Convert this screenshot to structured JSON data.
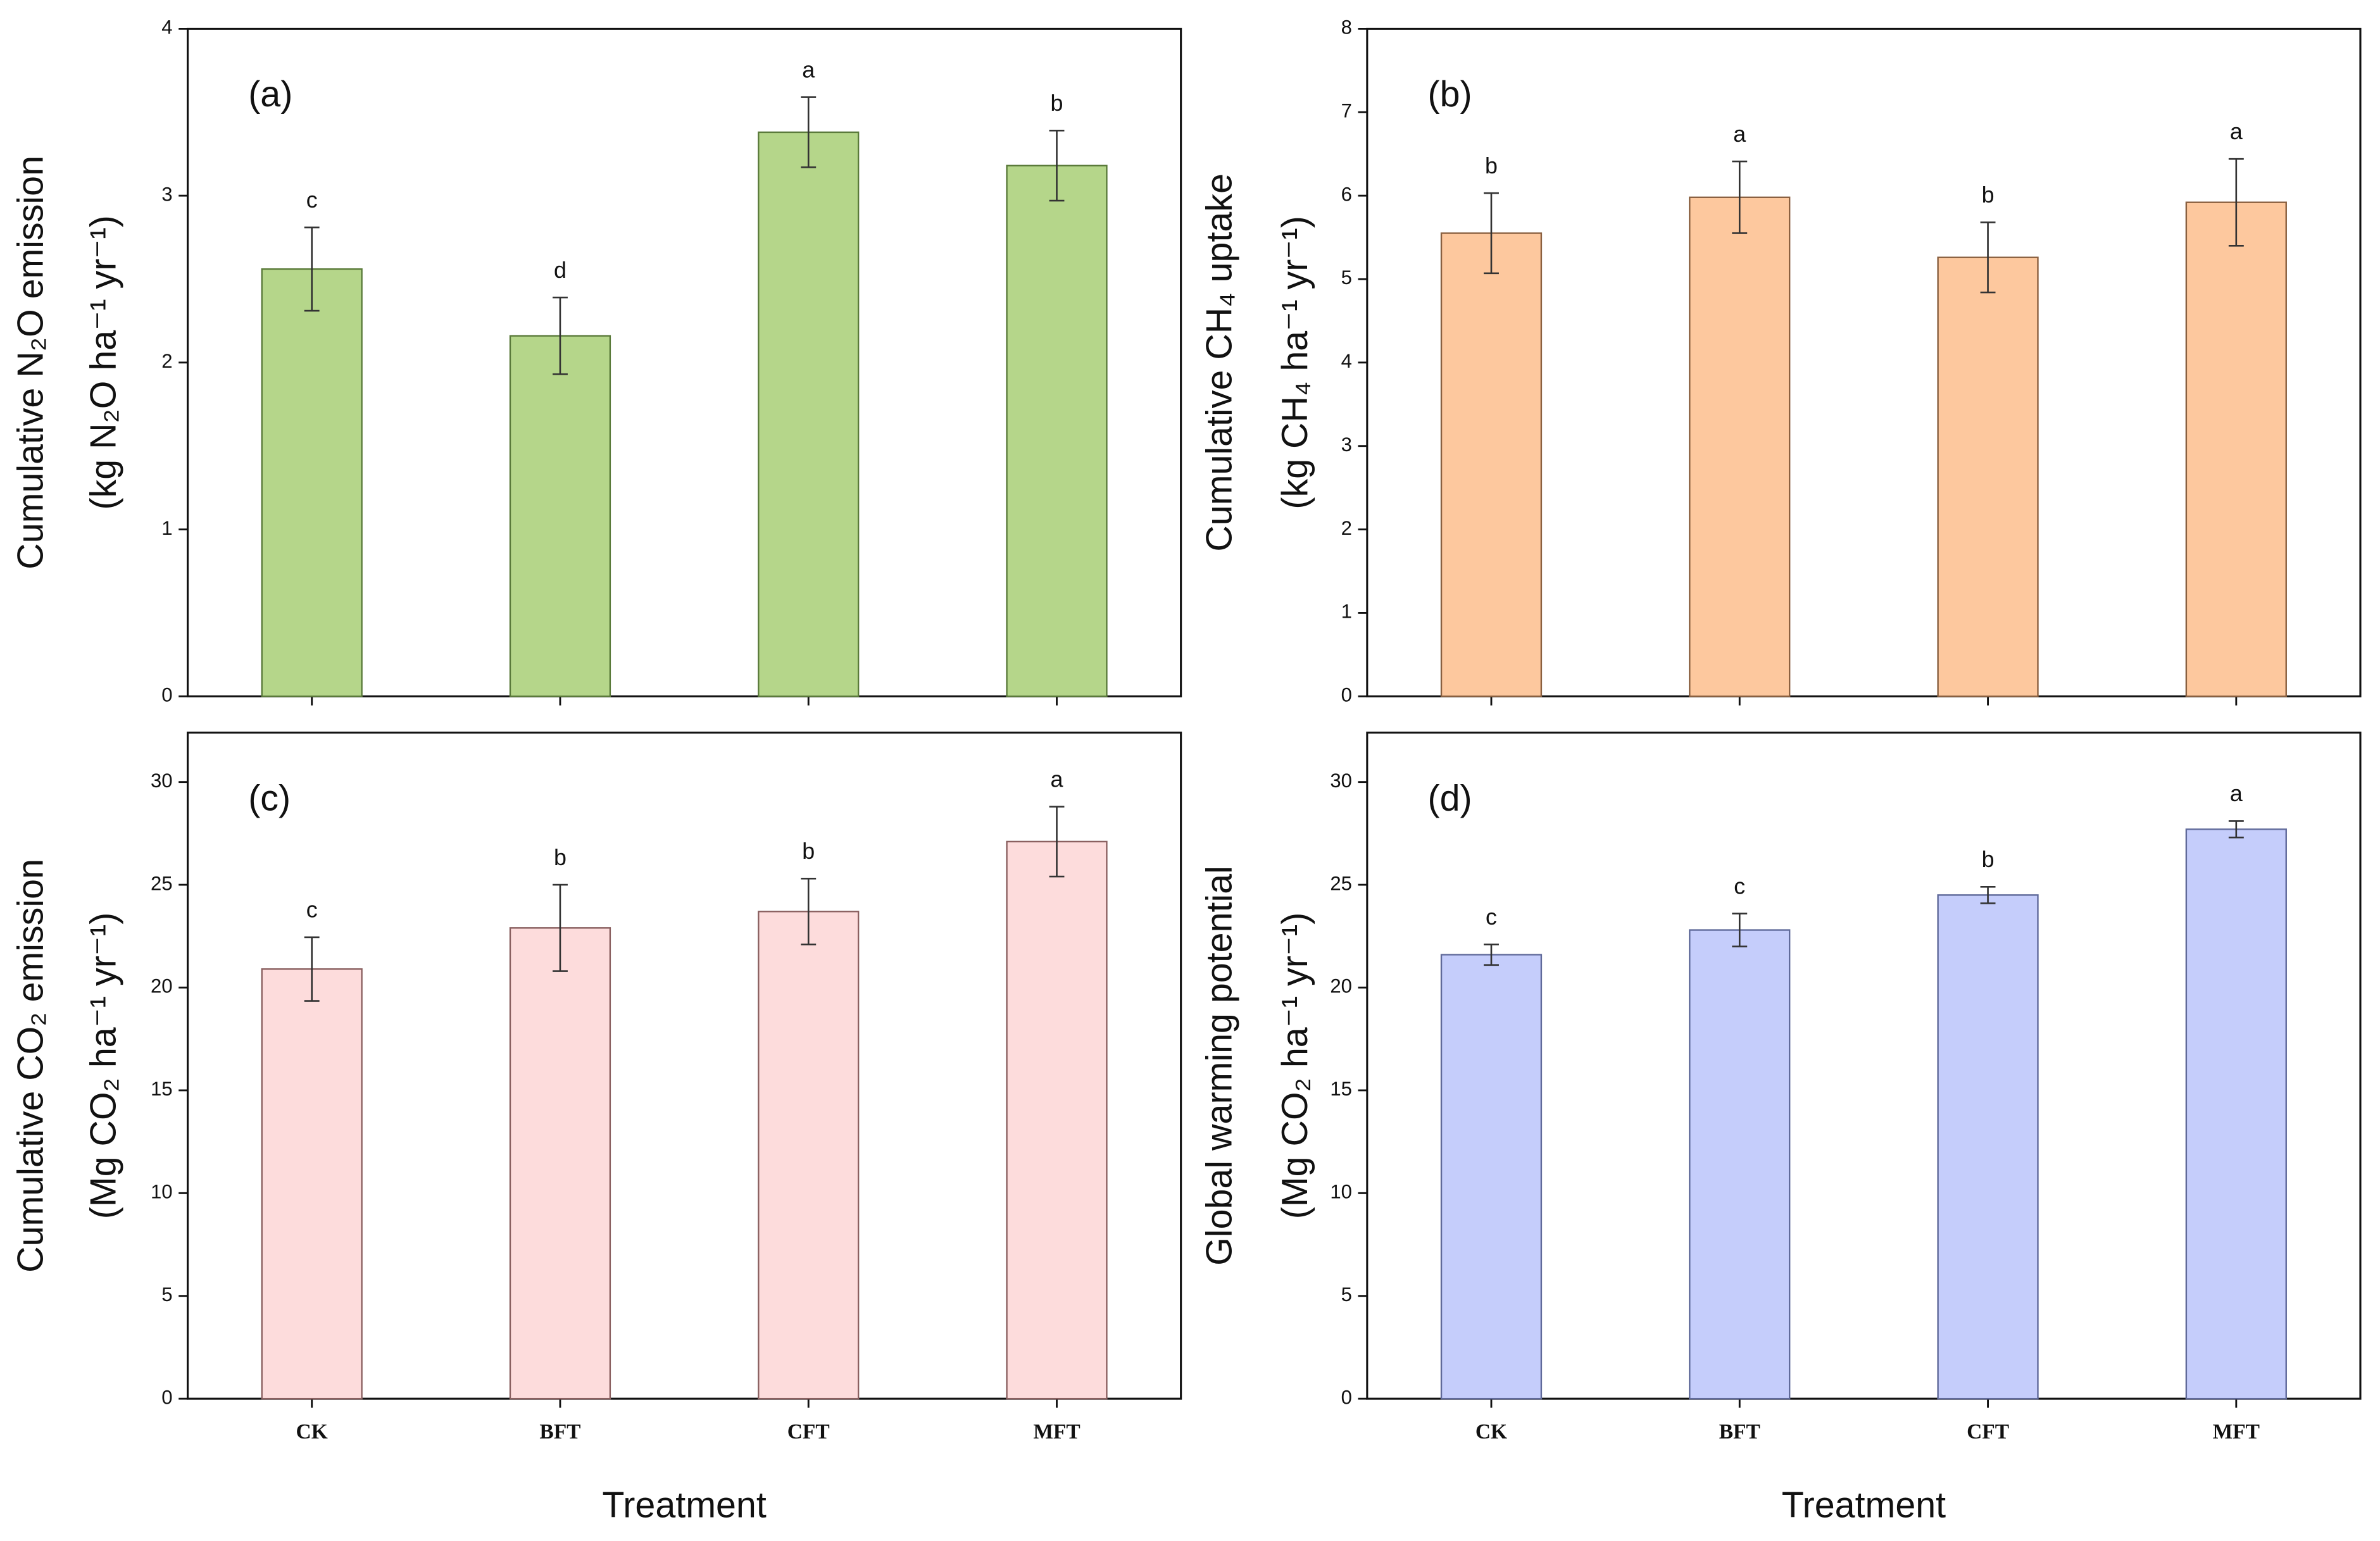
{
  "chart_data": [
    {
      "type": "bar",
      "panel_label": "(a)",
      "ylabel": [
        "Cumulative N₂O emission",
        "(kg N₂O ha⁻¹ yr⁻¹)"
      ],
      "categories": [
        null,
        null,
        null,
        null
      ],
      "values": [
        2.56,
        2.16,
        3.38,
        3.18
      ],
      "errors": [
        0.25,
        0.23,
        0.21,
        0.21
      ],
      "letters": [
        "c",
        "d",
        "a",
        "b"
      ],
      "color": "#b5d68a",
      "edgecolor": "#5a7a3a",
      "ylim": [
        0,
        4
      ],
      "yticks": [
        0,
        1,
        2,
        3,
        4
      ]
    },
    {
      "type": "bar",
      "panel_label": "(b)",
      "ylabel": [
        "Cumulative CH₄ uptake",
        "(kg CH₄ ha⁻¹ yr⁻¹)"
      ],
      "categories": [
        null,
        null,
        null,
        null
      ],
      "values": [
        5.55,
        5.98,
        5.26,
        5.92
      ],
      "errors": [
        0.48,
        0.43,
        0.42,
        0.52
      ],
      "letters": [
        "b",
        "a",
        "b",
        "a"
      ],
      "color": "#fdc89e",
      "edgecolor": "#8a6040",
      "ylim": [
        0,
        8
      ],
      "yticks": [
        0,
        1,
        2,
        3,
        4,
        5,
        6,
        7,
        8
      ]
    },
    {
      "type": "bar",
      "panel_label": "(c)",
      "ylabel": [
        "Cumulative CO₂ emission",
        "(Mg CO₂ ha⁻¹ yr⁻¹)"
      ],
      "xlabel": "Treatment",
      "categories": [
        "CK",
        "BFT",
        "CFT",
        "MFT"
      ],
      "values": [
        20.9,
        22.9,
        23.7,
        27.1
      ],
      "errors": [
        1.55,
        2.1,
        1.6,
        1.7
      ],
      "letters": [
        "c",
        "b",
        "b",
        "a"
      ],
      "color": "#fddcdc",
      "edgecolor": "#8a6060",
      "ylim": [
        0,
        32.4
      ],
      "yticks": [
        0,
        5,
        10,
        15,
        20,
        25,
        30
      ]
    },
    {
      "type": "bar",
      "panel_label": "(d)",
      "ylabel": [
        "Global warming potential",
        "(Mg CO₂ ha⁻¹ yr⁻¹)"
      ],
      "xlabel": "Treatment",
      "categories": [
        "CK",
        "BFT",
        "CFT",
        "MFT"
      ],
      "values": [
        21.6,
        22.8,
        24.5,
        27.7
      ],
      "errors": [
        0.5,
        0.8,
        0.4,
        0.4
      ],
      "letters": [
        "c",
        "c",
        "b",
        "a"
      ],
      "color": "#c5cdfb",
      "edgecolor": "#606a9a",
      "ylim": [
        0,
        32.4
      ],
      "yticks": [
        0,
        5,
        10,
        15,
        20,
        25,
        30
      ]
    }
  ]
}
